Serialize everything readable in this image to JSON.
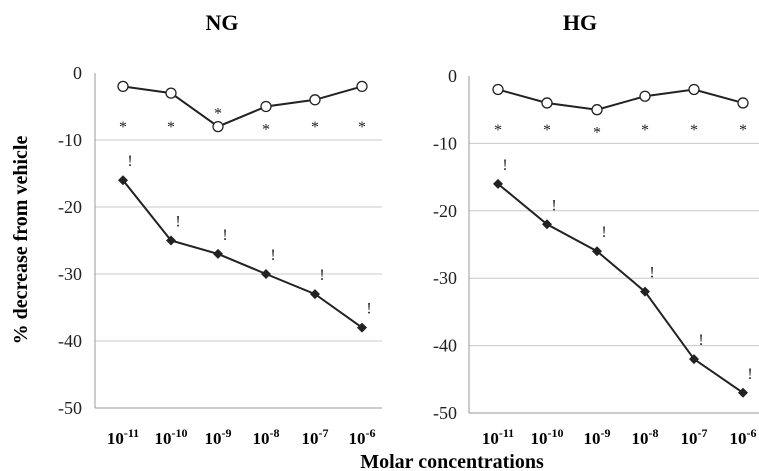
{
  "chart_data": [
    {
      "type": "line",
      "title": "NG",
      "ylim": [
        -50,
        0
      ],
      "yticks": [
        0,
        -10,
        -20,
        -30,
        -40,
        -50
      ],
      "categories": [
        "10-11",
        "10-10",
        "10-9",
        "10-8",
        "10-7",
        "10-6"
      ],
      "series": [
        {
          "marker": "open-circle",
          "values": [
            -2,
            -3,
            -8,
            -5,
            -4,
            -2
          ],
          "annotations": [
            "*",
            "*",
            "*",
            "*",
            "*",
            "*"
          ]
        },
        {
          "marker": "filled-diamond",
          "values": [
            -16,
            -25,
            -27,
            -30,
            -33,
            -38
          ],
          "annotations": [
            "!",
            "!",
            "!",
            "!",
            "!",
            "!"
          ]
        }
      ],
      "grid": true
    },
    {
      "type": "line",
      "title": "HG",
      "ylim": [
        -50,
        0
      ],
      "yticks": [
        0,
        -10,
        -20,
        -30,
        -40,
        -50
      ],
      "categories": [
        "10-11",
        "10-10",
        "10-9",
        "10-8",
        "10-7",
        "10-6"
      ],
      "series": [
        {
          "marker": "open-circle",
          "values": [
            -2,
            -4,
            -5,
            -3,
            -2,
            -4
          ],
          "annotations": [
            "*",
            "*",
            "*",
            "*",
            "*",
            "*"
          ]
        },
        {
          "marker": "filled-diamond",
          "values": [
            -16,
            -22,
            -26,
            -32,
            -42,
            -47
          ],
          "annotations": [
            "!",
            "!",
            "!",
            "!",
            "!",
            "!"
          ]
        }
      ],
      "grid": true
    }
  ],
  "ylabel": "% decrease from vehicle",
  "xlabel": "Molar concentrations",
  "tick_base": "10",
  "tick_exponents": [
    "-11",
    "-10",
    "-9",
    "-8",
    "-7",
    "-6"
  ],
  "colors": {
    "line": "#222222",
    "grid": "#c8c8c8",
    "axis": "#999999"
  }
}
